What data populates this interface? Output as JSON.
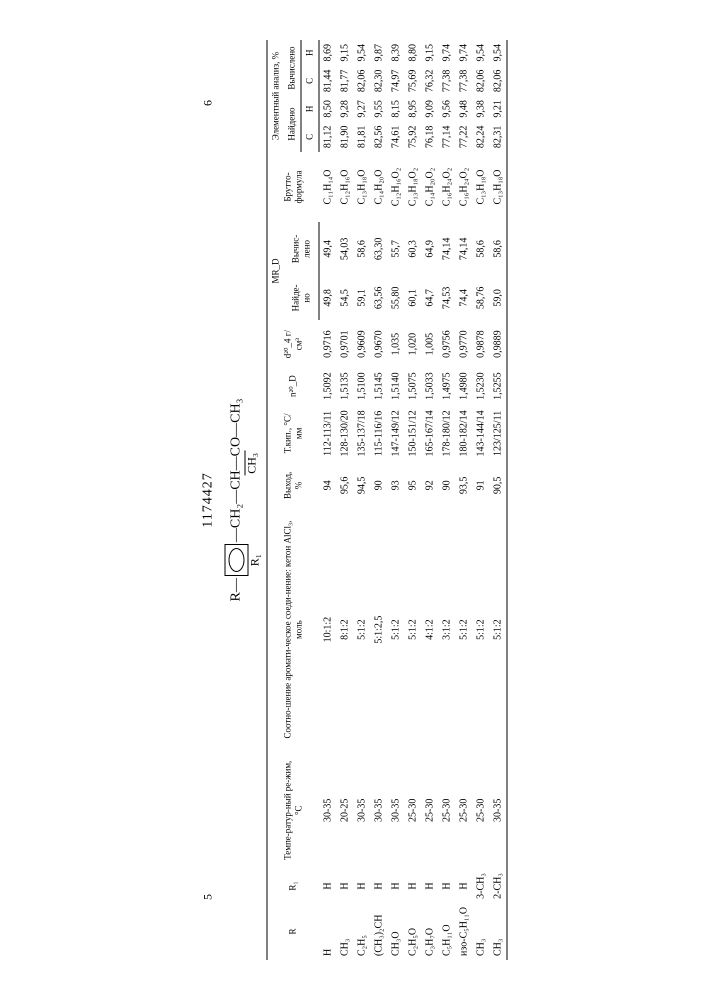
{
  "page_left_num": "5",
  "patent_number": "1174427",
  "page_right_num": "6",
  "formula": {
    "prefix": "R",
    "bridge": "CH₂—CH—CO—CH₃",
    "branch": "CH₃",
    "r1": "R₁"
  },
  "headers": {
    "R": "R",
    "R1": "R₁",
    "temp": "Темпе-ратур-ный ре-жим, °C",
    "ratio": "Соотно-шение аромати-ческое соеди-нение: кетон AlCl₃, моль",
    "yield": "Выход, %",
    "bp": "Т.кип., °C/мм",
    "nD": "n²⁰_D",
    "d4": "d²⁰_4 г/см³",
    "MRD": "MR_D",
    "MRD_found": "Найде-но",
    "MRD_calc": "Вычис-лено",
    "brutto": "Брутто-формула",
    "elem": "Элементный анализ, %",
    "found": "Найдено",
    "calc": "Вычислено",
    "C": "C",
    "H": "H"
  },
  "rows": [
    {
      "R": "H",
      "R1": "H",
      "temp": "30-35",
      "ratio": "10:1:2",
      "yield": "94",
      "bp": "112-113/11",
      "nD": "1,5092",
      "d4": "0,9716",
      "mrd_f": "49,8",
      "mrd_c": "49,4",
      "brutto": "C₁₁H₁₄O",
      "fc": "81,12",
      "fh": "8,50",
      "cc": "81,44",
      "ch": "8,69"
    },
    {
      "R": "CH₃",
      "R1": "H",
      "temp": "20-25",
      "ratio": "8:1:2",
      "yield": "95,6",
      "bp": "128-130/20",
      "nD": "1,5135",
      "d4": "0,9701",
      "mrd_f": "54,5",
      "mrd_c": "54,03",
      "brutto": "C₁₂H₁₆O",
      "fc": "81,90",
      "fh": "9,28",
      "cc": "81,77",
      "ch": "9,15"
    },
    {
      "R": "C₂H₅",
      "R1": "H",
      "temp": "30-35",
      "ratio": "5:1:2",
      "yield": "94,5",
      "bp": "135-137/18",
      "nD": "1,5100",
      "d4": "0,9609",
      "mrd_f": "59,1",
      "mrd_c": "58,6",
      "brutto": "C₁₃H₁₈O",
      "fc": "81,81",
      "fh": "9,27",
      "cc": "82,06",
      "ch": "9,54"
    },
    {
      "R": "(CH₃)₂CH",
      "R1": "H",
      "temp": "30-35",
      "ratio": "5:1:2,5",
      "yield": "90",
      "bp": "115-116/16",
      "nD": "1,5145",
      "d4": "0,9670",
      "mrd_f": "63,56",
      "mrd_c": "63,30",
      "brutto": "C₁₄H₂₀O",
      "fc": "82,56",
      "fh": "9,55",
      "cc": "82,30",
      "ch": "9,87"
    },
    {
      "R": "CH₃O",
      "R1": "H",
      "temp": "30-35",
      "ratio": "5:1:2",
      "yield": "93",
      "bp": "147-149/12",
      "nD": "1,5140",
      "d4": "1,035",
      "mrd_f": "55,80",
      "mrd_c": "55,7",
      "brutto": "C₁₂H₁₆O₂",
      "fc": "74,61",
      "fh": "8,15",
      "cc": "74,97",
      "ch": "8,39"
    },
    {
      "R": "C₂H₅O",
      "R1": "H",
      "temp": "25-30",
      "ratio": "5:1:2",
      "yield": "95",
      "bp": "150-151/12",
      "nD": "1,5075",
      "d4": "1,020",
      "mrd_f": "60,1",
      "mrd_c": "60,3",
      "brutto": "C₁₃H₁₈O₂",
      "fc": "75,92",
      "fh": "8,95",
      "cc": "75,69",
      "ch": "8,80"
    },
    {
      "R": "C₃H₇O",
      "R1": "H",
      "temp": "25-30",
      "ratio": "4:1:2",
      "yield": "92",
      "bp": "165-167/14",
      "nD": "1,5033",
      "d4": "1,005",
      "mrd_f": "64,7",
      "mrd_c": "64,9",
      "brutto": "C₁₄H₂₀O₂",
      "fc": "76,18",
      "fh": "9,09",
      "cc": "76,32",
      "ch": "9,15"
    },
    {
      "R": "C₅H₁₁O",
      "R1": "H",
      "temp": "25-30",
      "ratio": "3:1:2",
      "yield": "90",
      "bp": "178-180/12",
      "nD": "1,4975",
      "d4": "0,9756",
      "mrd_f": "74,53",
      "mrd_c": "74,14",
      "brutto": "C₁₆H₂₄O₂",
      "fc": "77,14",
      "fh": "9,56",
      "cc": "77,38",
      "ch": "9,74"
    },
    {
      "R": "изо-C₅H₁₁O",
      "R1": "H",
      "temp": "25-30",
      "ratio": "5:1:2",
      "yield": "93,5",
      "bp": "180-182/14",
      "nD": "1,4980",
      "d4": "0,9770",
      "mrd_f": "74,4",
      "mrd_c": "74,14",
      "brutto": "C₁₆H₂₄O₂",
      "fc": "77,22",
      "fh": "9,48",
      "cc": "77,38",
      "ch": "9,74"
    },
    {
      "R": "CH₃",
      "R1": "3-CH₃",
      "temp": "25-30",
      "ratio": "5:1:2",
      "yield": "91",
      "bp": "143-144/14",
      "nD": "1,5230",
      "d4": "0,9878",
      "mrd_f": "58,76",
      "mrd_c": "58,6",
      "brutto": "C₁₃H₁₈O",
      "fc": "82,24",
      "fh": "9,38",
      "cc": "82,06",
      "ch": "9,54"
    },
    {
      "R": "CH₃",
      "R1": "2-CH₃",
      "temp": "30-35",
      "ratio": "5:1:2",
      "yield": "90,5",
      "bp": "123/125/11",
      "nD": "1,5255",
      "d4": "0,9889",
      "mrd_f": "59,0",
      "mrd_c": "58,6",
      "brutto": "C₁₃H₁₈O",
      "fc": "82,31",
      "fh": "9,21",
      "cc": "82,06",
      "ch": "9,54"
    }
  ]
}
